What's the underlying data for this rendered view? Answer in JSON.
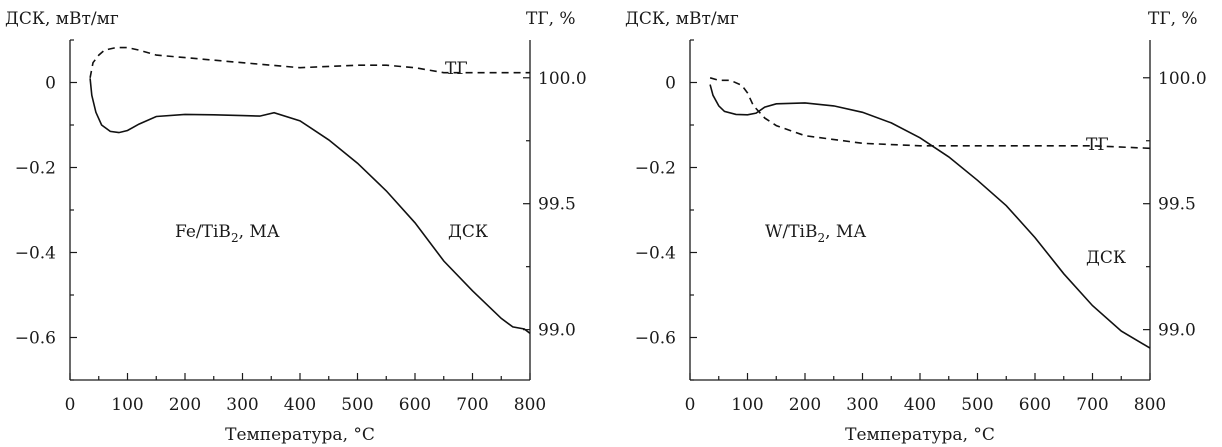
{
  "chart_data": [
    {
      "type": "line",
      "annotation": "Fe/TiB",
      "annotation_sub": "2",
      "annotation_tail": ", МА",
      "xlabel": "Температура, °C",
      "ylabel_left": "ДСК, мВт/мг",
      "ylabel_right": "ТГ, %",
      "xlim": [
        0,
        800
      ],
      "ylim_left": [
        -0.7,
        0.1
      ],
      "ylim_right": [
        98.8,
        100.15
      ],
      "x_ticks": [
        0,
        100,
        200,
        300,
        400,
        500,
        600,
        700,
        800
      ],
      "y_left_ticks": [
        0,
        -0.2,
        -0.4,
        -0.6
      ],
      "y_left_tick_labels": [
        "0",
        "−0.2",
        "−0.4",
        "−0.6"
      ],
      "y_right_ticks": [
        100.0,
        99.5,
        99.0
      ],
      "y_right_tick_labels": [
        "100.0",
        "99.5",
        "99.0"
      ],
      "series": [
        {
          "name": "ДСК",
          "axis": "left",
          "style": "solid",
          "x": [
            35,
            38,
            45,
            55,
            70,
            85,
            100,
            120,
            150,
            200,
            250,
            300,
            330,
            355,
            400,
            450,
            500,
            550,
            600,
            650,
            700,
            750,
            770,
            790,
            800
          ],
          "y": [
            0.01,
            -0.03,
            -0.07,
            -0.1,
            -0.115,
            -0.118,
            -0.113,
            -0.098,
            -0.08,
            -0.075,
            -0.076,
            -0.078,
            -0.079,
            -0.071,
            -0.09,
            -0.135,
            -0.19,
            -0.255,
            -0.33,
            -0.42,
            -0.49,
            -0.555,
            -0.575,
            -0.58,
            -0.59
          ]
        },
        {
          "name": "ТГ",
          "axis": "right",
          "style": "dashed",
          "x": [
            35,
            40,
            50,
            60,
            80,
            100,
            120,
            150,
            200,
            300,
            400,
            500,
            550,
            600,
            650,
            700,
            800
          ],
          "y": [
            100.0,
            100.06,
            100.09,
            100.11,
            100.12,
            100.12,
            100.11,
            100.09,
            100.08,
            100.06,
            100.04,
            100.05,
            100.05,
            100.04,
            100.02,
            100.02,
            100.02
          ]
        }
      ]
    },
    {
      "type": "line",
      "annotation": "W/TiB",
      "annotation_sub": "2",
      "annotation_tail": ", МА",
      "xlabel": "Температура, °C",
      "ylabel_left": "ДСК, мВт/мг",
      "ylabel_right": "ТГ, %",
      "xlim": [
        0,
        800
      ],
      "ylim_left": [
        -0.7,
        0.1
      ],
      "ylim_right": [
        98.8,
        100.15
      ],
      "x_ticks": [
        0,
        100,
        200,
        300,
        400,
        500,
        600,
        700,
        800
      ],
      "y_left_ticks": [
        0,
        -0.2,
        -0.4,
        -0.6
      ],
      "y_left_tick_labels": [
        "0",
        "−0.2",
        "−0.4",
        "−0.6"
      ],
      "y_right_ticks": [
        100.0,
        99.5,
        99.0
      ],
      "y_right_tick_labels": [
        "100.0",
        "99.5",
        "99.0"
      ],
      "series": [
        {
          "name": "ДСК",
          "axis": "left",
          "style": "solid",
          "x": [
            35,
            40,
            50,
            60,
            80,
            100,
            115,
            130,
            150,
            200,
            250,
            300,
            350,
            400,
            450,
            500,
            550,
            600,
            650,
            700,
            750,
            800
          ],
          "y": [
            -0.005,
            -0.03,
            -0.055,
            -0.068,
            -0.075,
            -0.076,
            -0.072,
            -0.058,
            -0.05,
            -0.048,
            -0.055,
            -0.07,
            -0.095,
            -0.13,
            -0.175,
            -0.23,
            -0.29,
            -0.365,
            -0.45,
            -0.525,
            -0.585,
            -0.625
          ]
        },
        {
          "name": "ТГ",
          "axis": "right",
          "style": "dashed",
          "x": [
            35,
            50,
            70,
            90,
            100,
            110,
            130,
            150,
            200,
            300,
            400,
            500,
            600,
            700,
            800
          ],
          "y": [
            100.0,
            99.99,
            99.99,
            99.97,
            99.94,
            99.89,
            99.84,
            99.81,
            99.77,
            99.74,
            99.73,
            99.73,
            99.73,
            99.73,
            99.72
          ]
        }
      ]
    }
  ]
}
